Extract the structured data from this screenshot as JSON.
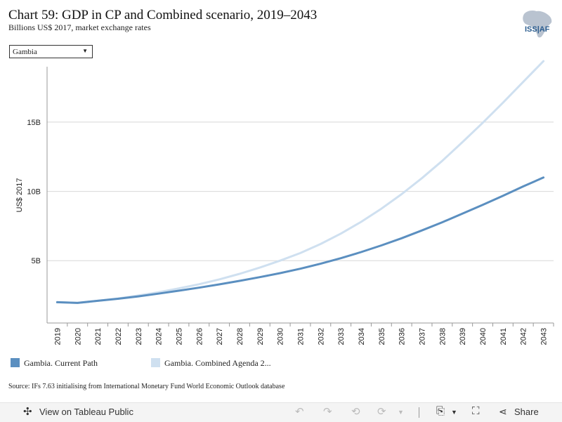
{
  "header": {
    "title": "Chart 59: GDP in CP and Combined scenario, 2019–2043",
    "subtitle": "Billions US$ 2017, market exchange rates",
    "logo_text": "ISS|AF"
  },
  "filter": {
    "selected": "Gambia"
  },
  "legend": {
    "items": [
      {
        "label": "Gambia. Current Path",
        "color": "#5b8fc0"
      },
      {
        "label": "Gambia. Combined Agenda 2...",
        "color": "#cfe0f0"
      }
    ]
  },
  "source": "Source: IFs 7.63 initialising from International Monetary Fund World Economic Outlook database",
  "toolbar": {
    "view_label": "View on Tableau Public",
    "share_label": "Share"
  },
  "chart_data": {
    "type": "line",
    "ylabel": "US$ 2017",
    "x": [
      "2019",
      "2020",
      "2021",
      "2022",
      "2023",
      "2024",
      "2025",
      "2026",
      "2027",
      "2028",
      "2029",
      "2030",
      "2031",
      "2032",
      "2033",
      "2034",
      "2035",
      "2036",
      "2037",
      "2038",
      "2039",
      "2040",
      "2041",
      "2042",
      "2043"
    ],
    "y_ticks": [
      5,
      10,
      15
    ],
    "y_tick_labels": [
      "5B",
      "10B",
      "15B"
    ],
    "ylim": [
      0.5,
      19.0
    ],
    "grid": true,
    "series": [
      {
        "name": "Gambia. Current Path",
        "color": "#5b8fc0",
        "values": [
          2.0,
          1.95,
          2.1,
          2.25,
          2.42,
          2.62,
          2.83,
          3.05,
          3.29,
          3.54,
          3.81,
          4.1,
          4.42,
          4.78,
          5.18,
          5.62,
          6.1,
          6.62,
          7.18,
          7.77,
          8.39,
          9.03,
          9.68,
          10.36,
          11.0
        ]
      },
      {
        "name": "Gambia. Combined Agenda 2...",
        "color": "#cfe0f0",
        "values": [
          2.0,
          1.95,
          2.1,
          2.27,
          2.48,
          2.72,
          3.0,
          3.3,
          3.65,
          4.05,
          4.5,
          5.0,
          5.55,
          6.2,
          6.95,
          7.8,
          8.75,
          9.8,
          10.95,
          12.2,
          13.55,
          14.95,
          16.4,
          17.9,
          19.4
        ]
      }
    ]
  }
}
